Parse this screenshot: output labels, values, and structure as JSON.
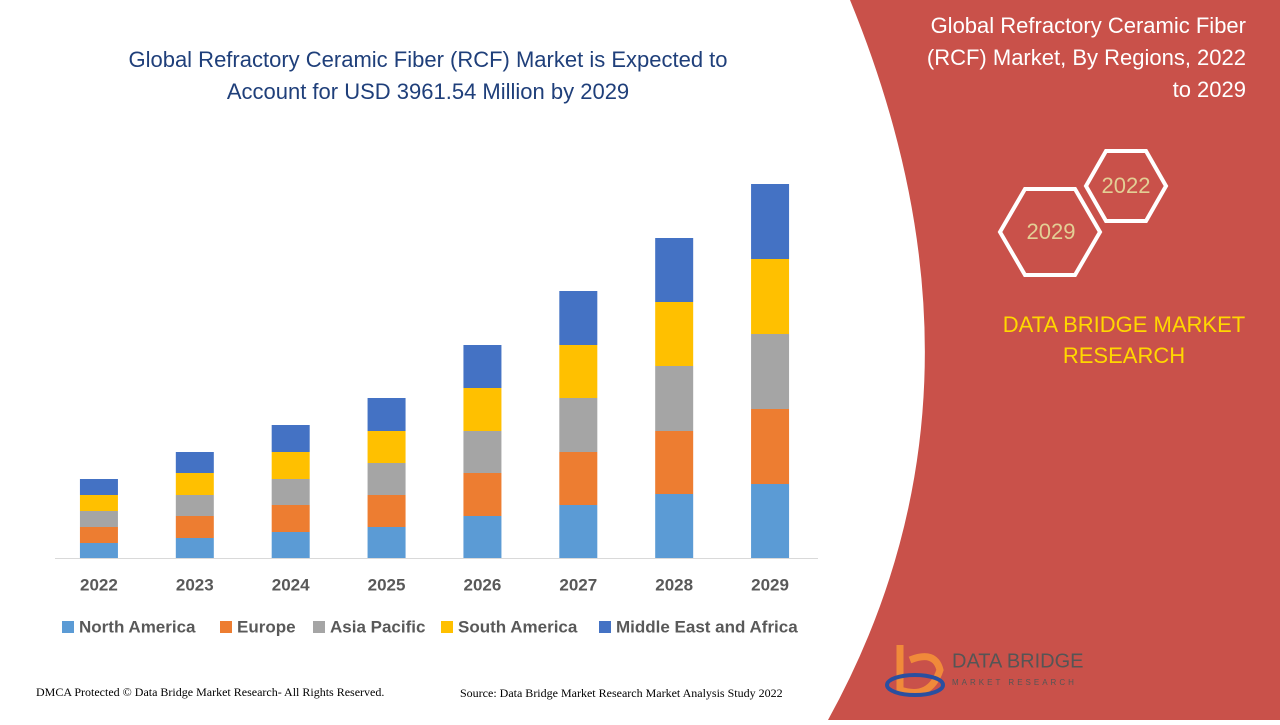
{
  "chart_data": {
    "type": "bar",
    "stacked": true,
    "title": [
      "Global Refractory Ceramic Fiber (RCF) Market is Expected to",
      "Account for USD 3961.54 Million by 2029"
    ],
    "categories": [
      "2022",
      "2023",
      "2024",
      "2025",
      "2026",
      "2027",
      "2028",
      "2029"
    ],
    "series": [
      {
        "name": "North America",
        "color": "#5b9bd5",
        "values": [
          15,
          20,
          26,
          31,
          42,
          53,
          64,
          74
        ]
      },
      {
        "name": "Europe",
        "color": "#ed7d31",
        "values": [
          16,
          22,
          27,
          32,
          43,
          53,
          63,
          75
        ]
      },
      {
        "name": "Asia Pacific",
        "color": "#a5a5a5",
        "values": [
          16,
          21,
          26,
          32,
          42,
          54,
          65,
          75
        ]
      },
      {
        "name": "South America",
        "color": "#ffc000",
        "values": [
          16,
          22,
          27,
          32,
          43,
          53,
          64,
          75
        ]
      },
      {
        "name": "Middle East and Africa",
        "color": "#4472c4",
        "values": [
          16,
          21,
          27,
          33,
          43,
          54,
          64,
          75
        ]
      }
    ]
  },
  "side_title": [
    "Global Refractory Ceramic Fiber",
    "(RCF) Market, By Regions, 2022",
    "to 2029"
  ],
  "hexagons": [
    "2022",
    "2029"
  ],
  "brand": [
    "DATA BRIDGE MARKET",
    "RESEARCH"
  ],
  "logo": [
    "DATA BRIDGE",
    "MARKET RESEARCH"
  ],
  "footer": {
    "left": "DMCA Protected © Data Bridge Market Research- All Rights Reserved.",
    "right": "Source: Data Bridge Market Research Market Analysis Study 2022"
  }
}
